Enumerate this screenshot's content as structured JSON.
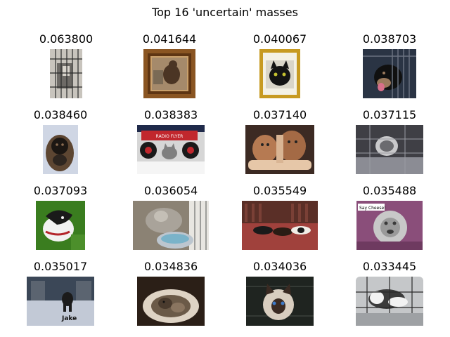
{
  "figure": {
    "title": "Top 16 'uncertain' masses"
  },
  "items": [
    {
      "score": "0.063800",
      "thumb": "dog-in-cage",
      "palette": [
        "#c8c4bd",
        "#6d6a66",
        "#2a2a2a"
      ]
    },
    {
      "score": "0.041644",
      "thumb": "framed-dog",
      "palette": [
        "#8a5522",
        "#c9a06b",
        "#4b3524"
      ]
    },
    {
      "score": "0.040067",
      "thumb": "framed-black-cat",
      "palette": [
        "#c79a21",
        "#f4f1e4",
        "#141414"
      ],
      "caption": "Lump Bar"
    },
    {
      "score": "0.038703",
      "thumb": "dog-behind-bars",
      "palette": [
        "#2a3444",
        "#9b7a5d",
        "#101010"
      ]
    },
    {
      "score": "0.038460",
      "thumb": "fluffy-dog",
      "palette": [
        "#cfd6e4",
        "#5d4632",
        "#1c1713"
      ]
    },
    {
      "score": "0.038383",
      "thumb": "cat-under-red-wagon",
      "palette": [
        "#1f2a4a",
        "#c1272d",
        "#d6d6d6"
      ],
      "caption": "RADIO FLYER"
    },
    {
      "score": "0.037140",
      "thumb": "held-kittens",
      "palette": [
        "#3c2a23",
        "#b67a52",
        "#e6c7a8"
      ]
    },
    {
      "score": "0.037115",
      "thumb": "cat-in-kennel",
      "palette": [
        "#3f3f45",
        "#8b8c94",
        "#c9c9cb"
      ]
    },
    {
      "score": "0.037093",
      "thumb": "greyhound-on-grass",
      "palette": [
        "#3a7d1f",
        "#f2f2f2",
        "#1a1a1a"
      ]
    },
    {
      "score": "0.036054",
      "thumb": "grey-cat-water-bowl",
      "palette": [
        "#8b8274",
        "#bcc6cf",
        "#7ab3c9"
      ]
    },
    {
      "score": "0.035549",
      "thumb": "puppies-on-porch",
      "palette": [
        "#5a2f27",
        "#a0413c",
        "#f0ede6"
      ]
    },
    {
      "score": "0.035488",
      "thumb": "grey-dog-say-cheese",
      "palette": [
        "#8a4e7a",
        "#c8c8c8",
        "#3a3a3a"
      ],
      "caption": "Say Cheese!"
    },
    {
      "score": "0.035017",
      "thumb": "dog-in-snow",
      "palette": [
        "#3b4757",
        "#c2c9d6",
        "#1b1b1b"
      ],
      "caption": "Jake"
    },
    {
      "score": "0.034836",
      "thumb": "cats-in-bed",
      "palette": [
        "#2b1f17",
        "#ded3c4",
        "#6b5a48"
      ]
    },
    {
      "score": "0.034036",
      "thumb": "siamese-cat-in-crate",
      "palette": [
        "#1f2420",
        "#d8cdbf",
        "#3a2a22"
      ]
    },
    {
      "score": "0.033445",
      "thumb": "tabby-cat-in-cage",
      "palette": [
        "#c5c7c9",
        "#3b3b3b",
        "#f2f2f2"
      ]
    }
  ]
}
